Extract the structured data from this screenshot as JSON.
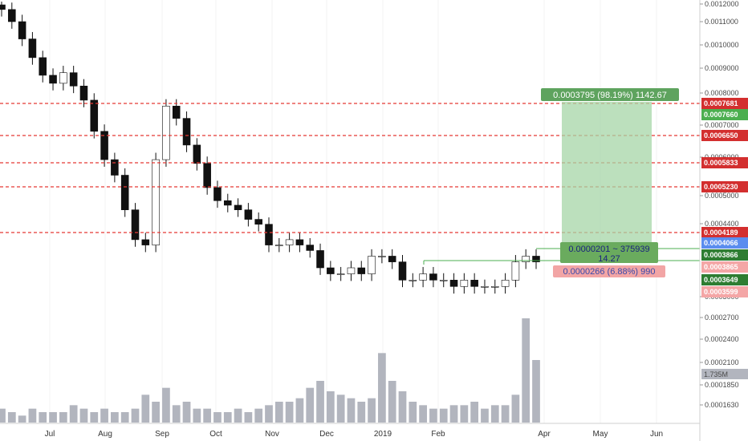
{
  "chart_data": {
    "type": "candlestick",
    "x_axis": {
      "labels": [
        "Jul",
        "Aug",
        "Sep",
        "Oct",
        "Nov",
        "Dec",
        "2019",
        "Feb",
        "Apr",
        "May",
        "Jun"
      ]
    },
    "y_axis": {
      "scale": "log",
      "tick_labels": [
        "0.0012000",
        "0.0011000",
        "0.0010000",
        "0.0009000",
        "0.0008000",
        "0.0007000",
        "0.0006000",
        "0.0005000",
        "0.0004400",
        "0.0003000",
        "0.0002700",
        "0.0002400",
        "0.0002100",
        "0.0001850",
        "0.0001630"
      ]
    },
    "price_close": [
      0.00118,
      0.00112,
      0.00104,
      0.00096,
      0.00089,
      0.00086,
      0.0009,
      0.00085,
      0.0008,
      0.0007,
      0.00062,
      0.00058,
      0.0005,
      0.00044,
      0.00043,
      0.00062,
      0.00078,
      0.00074,
      0.00066,
      0.00061,
      0.00055,
      0.00052,
      0.00051,
      0.0005,
      0.00048,
      0.00047,
      0.00043,
      0.00043,
      0.00044,
      0.00043,
      0.00042,
      0.00039,
      0.00038,
      0.00038,
      0.00039,
      0.00038,
      0.00041,
      0.00041,
      0.0004,
      0.00037,
      0.00037,
      0.00038,
      0.00037,
      0.00037,
      0.00036,
      0.00037,
      0.00036,
      0.00036,
      0.00036,
      0.00037,
      0.0004,
      0.00041,
      0.0004
    ],
    "volume": [
      4,
      3,
      2,
      4,
      3,
      3,
      3,
      5,
      4,
      3,
      4,
      3,
      3,
      4,
      8,
      6,
      10,
      5,
      6,
      4,
      4,
      3,
      3,
      4,
      3,
      4,
      5,
      6,
      6,
      7,
      10,
      12,
      9,
      8,
      7,
      6,
      7,
      20,
      12,
      9,
      6,
      5,
      4,
      4,
      5,
      5,
      6,
      4,
      5,
      5,
      8,
      30,
      18
    ],
    "volume_last_label": "1.735M",
    "horizontal_levels": [
      {
        "value": 0.0007681,
        "label": "0.0007681",
        "color": "#e53935"
      },
      {
        "value": 0.000665,
        "label": "0.0006650",
        "color": "#e53935"
      },
      {
        "value": 0.0005833,
        "label": "0.0005833",
        "color": "#e53935"
      },
      {
        "value": 0.000523,
        "label": "0.0005230",
        "color": "#e53935"
      },
      {
        "value": 0.0004189,
        "label": "0.0004189",
        "color": "#e53935"
      }
    ],
    "price_tags": [
      {
        "value": 0.000766,
        "label": "0.0007660",
        "color": "#4caf50"
      },
      {
        "value": 0.0004066,
        "label": "0.0004066",
        "color": "#5b8def"
      },
      {
        "value": 0.0003866,
        "label": "0.0003866",
        "color": "#2e7d32"
      },
      {
        "value": 0.0003865,
        "label": "0.0003865",
        "color": "#f4a6a6"
      },
      {
        "value": 0.0003649,
        "label": "0.0003649",
        "color": "#2e7d32"
      },
      {
        "value": 0.0003599,
        "label": "0.0003599",
        "color": "#f4a6a6"
      }
    ],
    "annotations": {
      "target": "0.0003795 (98.19%) 1142.67",
      "risk_reward": "0.0000201 ~ 375939",
      "risk_reward_ratio": "14.27",
      "stop": "0.0000266 (6.88%) 990"
    }
  }
}
